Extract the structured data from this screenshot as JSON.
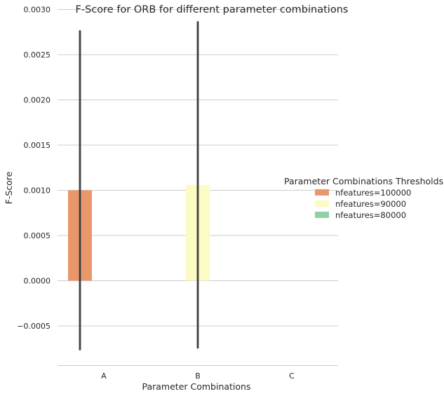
{
  "chart_data": {
    "type": "bar",
    "title": "F-Score for ORB for different parameter combinations",
    "xlabel": "Parameter Combinations",
    "ylabel": "F-Score",
    "categories": [
      "A",
      "B",
      "C"
    ],
    "ylim": [
      -0.00092,
      0.003
    ],
    "yticks": [
      -0.0005,
      0.0,
      0.0005,
      0.001,
      0.0015,
      0.002,
      0.0025,
      0.003
    ],
    "ytick_labels": [
      "−0.0005",
      "0.0000",
      "0.0005",
      "0.0010",
      "0.0015",
      "0.0020",
      "0.0025",
      "0.0030"
    ],
    "grid": "horizontal",
    "legend_position": "right",
    "legend_title": "Parameter Combinations Thresholds",
    "series": [
      {
        "name": "nfeatures=100000",
        "color": "#e9966a",
        "values": [
          0.001,
          0,
          0
        ],
        "error": [
          [
            -0.00076,
            0.00276
          ],
          null,
          null
        ]
      },
      {
        "name": "nfeatures=90000",
        "color": "#fcfbc4",
        "values": [
          0,
          0.00106,
          0
        ],
        "error": [
          null,
          [
            -0.00074,
            0.00286
          ],
          null
        ]
      },
      {
        "name": "nfeatures=80000",
        "color": "#93cfa6",
        "values": [
          0,
          0,
          0
        ],
        "error": [
          null,
          null,
          null
        ]
      }
    ]
  }
}
